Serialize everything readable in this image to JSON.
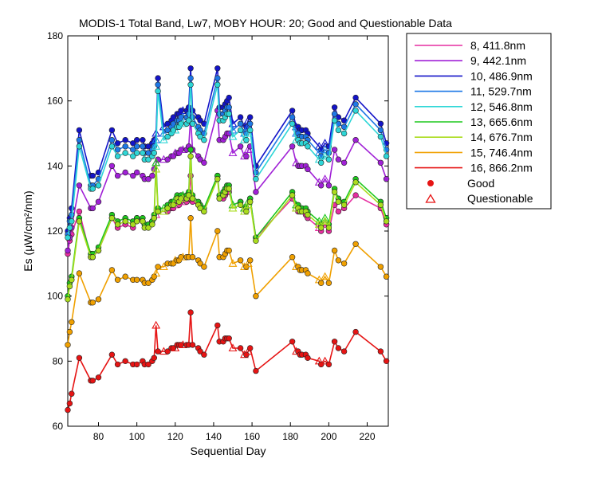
{
  "chart_data": {
    "type": "line",
    "title": "MODIS-1 Total Band,  Lw7, MOBY HOUR: 20;  Good and Questionable Data",
    "xlabel": "Sequential Day",
    "ylabel": "Es (μW/cm²/nm)",
    "xlim": [
      64,
      231
    ],
    "ylim": [
      60,
      180
    ],
    "xticks": [
      80,
      100,
      120,
      140,
      160,
      180,
      200,
      220
    ],
    "yticks": [
      60,
      80,
      100,
      120,
      140,
      160,
      180
    ],
    "legend_position": "right-outside-top",
    "grid": false,
    "marker_legend": {
      "good_label": "Good",
      "questionable_label": "Questionable"
    },
    "x": [
      64,
      65,
      66,
      70,
      76,
      77,
      80,
      87,
      90,
      94,
      98,
      100,
      103,
      104,
      106,
      108,
      109,
      110,
      111,
      114,
      116,
      118,
      119,
      120,
      121,
      122,
      123,
      124,
      126,
      127,
      128,
      129,
      132,
      133,
      135,
      142,
      143,
      145,
      146,
      147,
      148,
      150,
      154,
      156,
      157,
      158,
      159,
      162,
      181,
      183,
      184,
      185,
      186,
      188,
      189,
      195,
      196,
      198,
      200,
      203,
      205,
      208,
      214,
      227,
      230
    ],
    "x_questionable": [
      110,
      112,
      114,
      116,
      120,
      124,
      128,
      150,
      154,
      156,
      158,
      183,
      190,
      195,
      198,
      205,
      210,
      230
    ],
    "series": [
      {
        "name": "8, 411.8nm",
        "color": "#e62ea0",
        "scale": 1.0,
        "offset": -0.8
      },
      {
        "name": "9, 442.1nm",
        "color": "#a020d6",
        "scale": 1.0,
        "offset": 0.0
      },
      {
        "name": "10, 486.9nm",
        "color": "#1414c8",
        "scale": 1.0,
        "offset": 0.0
      },
      {
        "name": "11, 529.7nm",
        "color": "#1e78e6",
        "scale": 1.0,
        "offset": 0.0
      },
      {
        "name": "12, 546.8nm",
        "color": "#2ed6d6",
        "scale": 1.0,
        "offset": 0.0
      },
      {
        "name": "13, 665.6nm",
        "color": "#1ec81e",
        "scale": 1.0,
        "offset": 0.0
      },
      {
        "name": "14, 676.7nm",
        "color": "#aadc1e",
        "scale": 1.0,
        "offset": 0.0
      },
      {
        "name": "15, 746.4nm",
        "color": "#f0a000",
        "scale": 1.0,
        "offset": 0.0
      },
      {
        "name": "16, 866.2nm",
        "color": "#e61414",
        "scale": 1.0,
        "offset": 0.0
      }
    ],
    "values": {
      "8, 411.8nm": [
        113,
        117,
        119,
        126,
        112,
        112,
        114,
        124,
        121,
        122,
        121,
        124,
        123,
        122,
        122,
        123,
        124,
        125,
        126,
        126,
        126,
        127,
        127,
        128,
        129,
        128,
        129,
        129,
        129,
        130,
        137,
        129,
        128,
        127,
        126,
        137,
        130,
        130,
        131,
        132,
        132,
        128,
        129,
        127,
        127,
        129,
        130,
        118,
        130,
        127,
        126,
        126,
        126,
        125,
        124,
        121,
        120,
        122,
        120,
        128,
        126,
        127,
        131,
        127,
        122
      ],
      "9, 442.1nm": [
        114,
        118,
        121,
        134,
        127,
        127,
        129,
        140,
        137,
        138,
        137,
        138,
        137,
        136,
        136,
        137,
        139,
        141,
        142,
        142,
        142,
        143,
        143,
        144,
        144,
        144,
        145,
        145,
        145,
        146,
        155,
        145,
        143,
        142,
        141,
        157,
        148,
        148,
        149,
        150,
        150,
        144,
        146,
        143,
        143,
        145,
        146,
        132,
        146,
        141,
        140,
        140,
        140,
        140,
        139,
        135,
        134,
        136,
        134,
        145,
        142,
        141,
        148,
        141,
        136
      ],
      "10, 486.9nm": [
        120,
        124,
        127,
        151,
        137,
        137,
        138,
        151,
        147,
        148,
        147,
        148,
        148,
        146,
        146,
        147,
        148,
        150,
        167,
        152,
        153,
        154,
        155,
        155,
        156,
        156,
        157,
        157,
        157,
        158,
        170,
        157,
        155,
        154,
        153,
        170,
        158,
        158,
        159,
        160,
        161,
        153,
        155,
        152,
        152,
        154,
        155,
        140,
        157,
        152,
        152,
        151,
        151,
        151,
        150,
        146,
        145,
        147,
        146,
        158,
        155,
        154,
        161,
        153,
        147
      ],
      "11, 529.7nm": [
        119,
        123,
        125,
        148,
        134,
        134,
        136,
        148,
        145,
        146,
        145,
        146,
        146,
        144,
        144,
        145,
        146,
        148,
        165,
        150,
        151,
        152,
        153,
        153,
        154,
        154,
        155,
        155,
        155,
        156,
        167,
        155,
        152,
        151,
        150,
        167,
        156,
        156,
        157,
        158,
        158,
        151,
        153,
        150,
        150,
        152,
        153,
        138,
        155,
        150,
        150,
        149,
        149,
        149,
        148,
        144,
        143,
        145,
        144,
        156,
        153,
        152,
        159,
        151,
        145
      ],
      "12, 546.8nm": [
        118,
        121,
        123,
        146,
        133,
        133,
        134,
        146,
        143,
        144,
        143,
        144,
        144,
        142,
        142,
        143,
        144,
        146,
        163,
        148,
        149,
        150,
        151,
        151,
        152,
        152,
        153,
        153,
        153,
        154,
        165,
        153,
        150,
        149,
        148,
        165,
        154,
        154,
        155,
        156,
        156,
        149,
        151,
        148,
        148,
        150,
        151,
        136,
        153,
        148,
        148,
        147,
        147,
        147,
        146,
        142,
        141,
        143,
        142,
        154,
        151,
        150,
        157,
        149,
        143
      ],
      "13, 665.6nm": [
        100,
        104,
        106,
        124,
        113,
        113,
        115,
        125,
        123,
        124,
        123,
        124,
        124,
        122,
        122,
        123,
        125,
        141,
        127,
        127,
        128,
        129,
        129,
        130,
        131,
        130,
        131,
        131,
        131,
        132,
        145,
        131,
        129,
        128,
        127,
        137,
        131,
        132,
        133,
        134,
        134,
        128,
        129,
        127,
        127,
        129,
        130,
        118,
        132,
        128,
        128,
        127,
        127,
        127,
        126,
        123,
        122,
        124,
        122,
        133,
        130,
        129,
        136,
        129,
        124
      ],
      "14, 676.7nm": [
        99,
        103,
        105,
        123,
        112,
        112,
        114,
        124,
        122,
        123,
        122,
        123,
        123,
        121,
        121,
        122,
        124,
        139,
        126,
        126,
        127,
        128,
        128,
        129,
        130,
        129,
        130,
        130,
        130,
        131,
        143,
        130,
        128,
        127,
        126,
        136,
        130,
        131,
        132,
        133,
        133,
        127,
        128,
        126,
        126,
        128,
        129,
        117,
        131,
        127,
        127,
        126,
        126,
        126,
        125,
        122,
        121,
        123,
        121,
        132,
        129,
        128,
        135,
        128,
        123
      ],
      "15, 746.4nm": [
        85,
        89,
        92,
        107,
        98,
        98,
        99,
        108,
        105,
        106,
        105,
        105,
        105,
        104,
        104,
        105,
        106,
        107,
        109,
        109,
        110,
        110,
        110,
        111,
        111,
        111,
        112,
        112,
        112,
        112,
        124,
        112,
        111,
        110,
        109,
        120,
        112,
        112,
        113,
        114,
        114,
        110,
        111,
        109,
        109,
        110,
        111,
        100,
        112,
        109,
        109,
        108,
        108,
        108,
        107,
        105,
        104,
        106,
        104,
        114,
        111,
        110,
        116,
        109,
        106
      ],
      "16, 866.2nm": [
        65,
        67,
        70,
        81,
        74,
        74,
        75,
        82,
        79,
        80,
        79,
        79,
        80,
        79,
        79,
        80,
        81,
        91,
        83,
        83,
        83,
        84,
        84,
        84,
        85,
        85,
        85,
        85,
        85,
        85,
        95,
        85,
        84,
        83,
        82,
        91,
        86,
        86,
        87,
        87,
        87,
        84,
        84,
        82,
        82,
        83,
        84,
        77,
        86,
        83,
        83,
        82,
        82,
        82,
        81,
        80,
        79,
        80,
        79,
        86,
        84,
        83,
        89,
        83,
        80
      ]
    }
  }
}
